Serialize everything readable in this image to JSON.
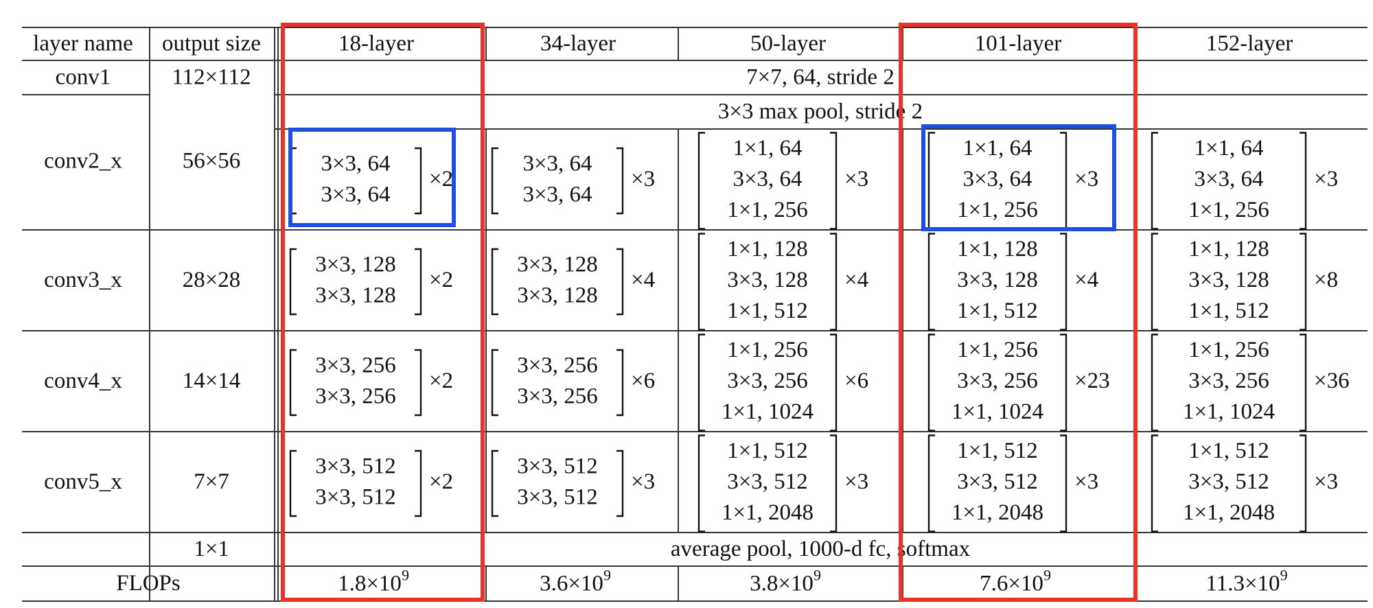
{
  "table": {
    "headers": [
      "layer name",
      "output size",
      "18-layer",
      "34-layer",
      "50-layer",
      "101-layer",
      "152-layer"
    ],
    "conv1": {
      "name": "conv1",
      "size": "112×112",
      "spec": "7×7, 64, stride 2"
    },
    "pool": {
      "spec": "3×3 max pool, stride 2"
    },
    "stages": [
      {
        "name": "conv2_x",
        "size": "56×56",
        "cells": [
          {
            "lines": [
              "3×3, 64",
              "3×3, 64"
            ],
            "mult": "×2"
          },
          {
            "lines": [
              "3×3, 64",
              "3×3, 64"
            ],
            "mult": "×3"
          },
          {
            "lines": [
              "1×1, 64",
              "3×3, 64",
              "1×1, 256"
            ],
            "mult": "×3"
          },
          {
            "lines": [
              "1×1, 64",
              "3×3, 64",
              "1×1, 256"
            ],
            "mult": "×3"
          },
          {
            "lines": [
              "1×1, 64",
              "3×3, 64",
              "1×1, 256"
            ],
            "mult": "×3"
          }
        ]
      },
      {
        "name": "conv3_x",
        "size": "28×28",
        "cells": [
          {
            "lines": [
              "3×3, 128",
              "3×3, 128"
            ],
            "mult": "×2"
          },
          {
            "lines": [
              "3×3, 128",
              "3×3, 128"
            ],
            "mult": "×4"
          },
          {
            "lines": [
              "1×1, 128",
              "3×3, 128",
              "1×1, 512"
            ],
            "mult": "×4"
          },
          {
            "lines": [
              "1×1, 128",
              "3×3, 128",
              "1×1, 512"
            ],
            "mult": "×4"
          },
          {
            "lines": [
              "1×1, 128",
              "3×3, 128",
              "1×1, 512"
            ],
            "mult": "×8"
          }
        ]
      },
      {
        "name": "conv4_x",
        "size": "14×14",
        "cells": [
          {
            "lines": [
              "3×3, 256",
              "3×3, 256"
            ],
            "mult": "×2"
          },
          {
            "lines": [
              "3×3, 256",
              "3×3, 256"
            ],
            "mult": "×6"
          },
          {
            "lines": [
              "1×1, 256",
              "3×3, 256",
              "1×1, 1024"
            ],
            "mult": "×6"
          },
          {
            "lines": [
              "1×1, 256",
              "3×3, 256",
              "1×1, 1024"
            ],
            "mult": "×23"
          },
          {
            "lines": [
              "1×1, 256",
              "3×3, 256",
              "1×1, 1024"
            ],
            "mult": "×36"
          }
        ]
      },
      {
        "name": "conv5_x",
        "size": "7×7",
        "cells": [
          {
            "lines": [
              "3×3, 512",
              "3×3, 512"
            ],
            "mult": "×2"
          },
          {
            "lines": [
              "3×3, 512",
              "3×3, 512"
            ],
            "mult": "×3"
          },
          {
            "lines": [
              "1×1, 512",
              "3×3, 512",
              "1×1, 2048"
            ],
            "mult": "×3"
          },
          {
            "lines": [
              "1×1, 512",
              "3×3, 512",
              "1×1, 2048"
            ],
            "mult": "×3"
          },
          {
            "lines": [
              "1×1, 512",
              "3×3, 512",
              "1×1, 2048"
            ],
            "mult": "×3"
          }
        ]
      }
    ],
    "final": {
      "size": "1×1",
      "spec": "average pool, 1000-d fc, softmax"
    },
    "flops": {
      "label": "FLOPs",
      "values": [
        {
          "base": "1.8×10",
          "exp": "9"
        },
        {
          "base": "3.6×10",
          "exp": "9"
        },
        {
          "base": "3.8×10",
          "exp": "9"
        },
        {
          "base": "7.6×10",
          "exp": "9"
        },
        {
          "base": "11.3×10",
          "exp": "9"
        }
      ]
    }
  },
  "highlights": {
    "red": "#e8322a",
    "blue": "#1f4fe0"
  }
}
